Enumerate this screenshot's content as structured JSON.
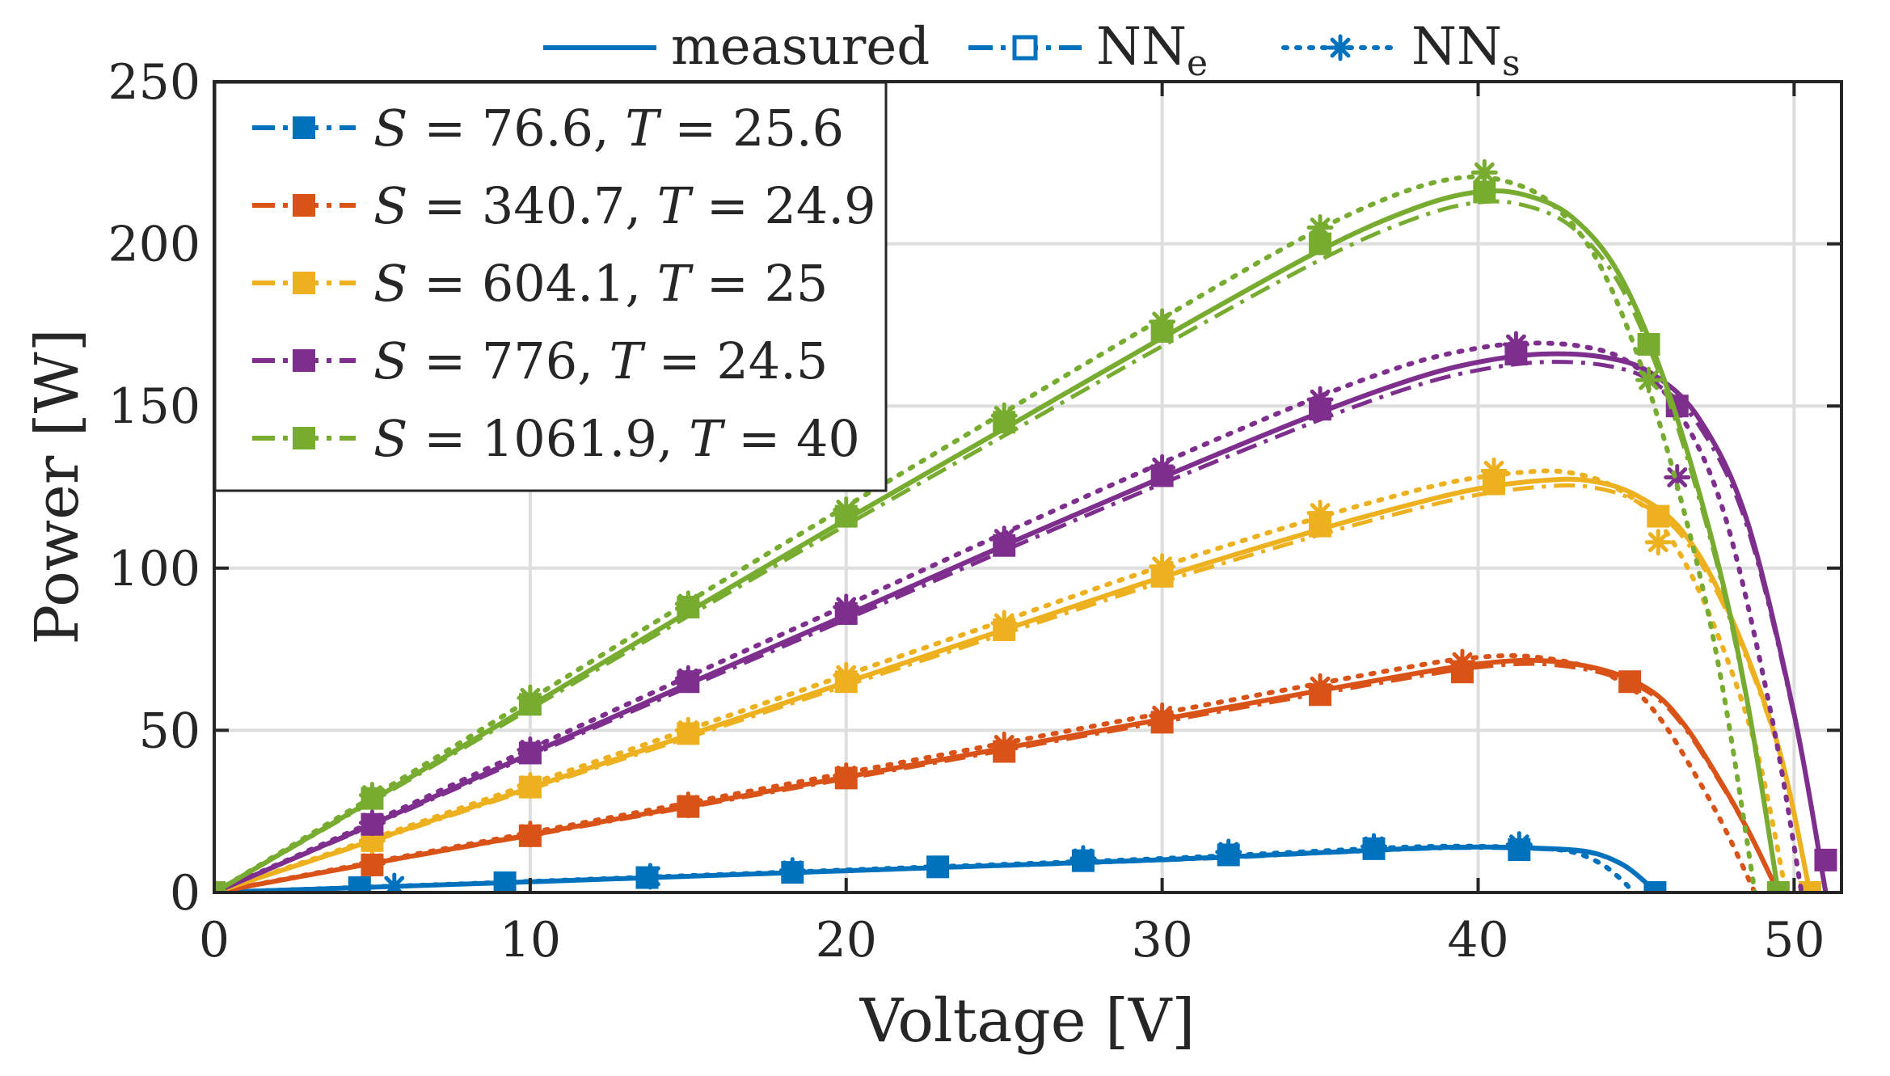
{
  "chart_data": {
    "type": "line",
    "xlabel": "Voltage [V]",
    "ylabel": "Power [W]",
    "xlim": [
      0,
      51.5
    ],
    "ylim": [
      0,
      250
    ],
    "xticks": [
      0,
      10,
      20,
      30,
      40,
      50
    ],
    "yticks": [
      0,
      50,
      100,
      150,
      200,
      250
    ],
    "grid": true,
    "style_legend": {
      "placement": "top-outside",
      "entries": [
        {
          "label": "measured",
          "sub": "",
          "style": "solid",
          "marker": "none"
        },
        {
          "label": "NN",
          "sub": "e",
          "style": "dashdot",
          "marker": "square-open"
        },
        {
          "label": "NN",
          "sub": "s",
          "style": "dotted",
          "marker": "asterisk"
        }
      ]
    },
    "series_legend": {
      "placement": "top-left",
      "entries": [
        "S = 76.6, T = 25.6",
        "S = 340.7, T = 24.9",
        "S = 604.1, T = 25",
        "S = 776, T = 24.5",
        "S = 1061.9, T = 40"
      ]
    },
    "series": [
      {
        "name": "S = 76.6, T = 25.6",
        "color": "#0072BD",
        "measured": [
          [
            0,
            0
          ],
          [
            10,
            3.3
          ],
          [
            20,
            6.7
          ],
          [
            30,
            10.1
          ],
          [
            35,
            12.3
          ],
          [
            38,
            13.6
          ],
          [
            40,
            14
          ],
          [
            42,
            13.6
          ],
          [
            43.5,
            12.5
          ],
          [
            44.5,
            9
          ],
          [
            45.2,
            4
          ],
          [
            45.6,
            0
          ]
        ],
        "nn_e_markers": [
          [
            0,
            0
          ],
          [
            4.6,
            1.5
          ],
          [
            9.2,
            3
          ],
          [
            13.7,
            4.6
          ],
          [
            18.3,
            6.2
          ],
          [
            22.9,
            7.9
          ],
          [
            27.5,
            9.8
          ],
          [
            32.1,
            11.6
          ],
          [
            36.7,
            13.5
          ],
          [
            41.3,
            13.2
          ],
          [
            45.6,
            0
          ]
        ],
        "nn_s_markers": [
          [
            0,
            0
          ],
          [
            5.7,
            2
          ],
          [
            13.8,
            5
          ],
          [
            18.3,
            6.8
          ],
          [
            27.5,
            10.5
          ],
          [
            32.1,
            12.5
          ],
          [
            36.7,
            14.2
          ],
          [
            41.3,
            14.8
          ]
        ]
      },
      {
        "name": "S = 340.7, T = 24.9",
        "color": "#D95319",
        "measured": [
          [
            0,
            0
          ],
          [
            5,
            9
          ],
          [
            10,
            17.8
          ],
          [
            15,
            26.7
          ],
          [
            20,
            35.6
          ],
          [
            25,
            44.5
          ],
          [
            30,
            53.4
          ],
          [
            35,
            62.3
          ],
          [
            38,
            67.5
          ],
          [
            40,
            70.5
          ],
          [
            42,
            71.5
          ],
          [
            44,
            68.5
          ],
          [
            45.5,
            62
          ],
          [
            46.5,
            52
          ],
          [
            47.5,
            37
          ],
          [
            48.5,
            20
          ],
          [
            49.5,
            0
          ]
        ],
        "nn_e_markers": [
          [
            0,
            0
          ],
          [
            5,
            8.5
          ],
          [
            10,
            17.5
          ],
          [
            15,
            26.5
          ],
          [
            20,
            35.3
          ],
          [
            25,
            43.5
          ],
          [
            30,
            52.5
          ],
          [
            35,
            61
          ],
          [
            39.5,
            68
          ],
          [
            44.8,
            65
          ]
        ],
        "nn_s_markers": [
          [
            0,
            0
          ],
          [
            5,
            9
          ],
          [
            10,
            18
          ],
          [
            15,
            27
          ],
          [
            20,
            36
          ],
          [
            25,
            45.5
          ],
          [
            30,
            54.5
          ],
          [
            35,
            63.5
          ],
          [
            39.5,
            71
          ]
        ]
      },
      {
        "name": "S = 604.1, T = 25",
        "color": "#EDB120",
        "measured": [
          [
            0,
            0
          ],
          [
            5,
            16
          ],
          [
            10,
            32.3
          ],
          [
            15,
            48.5
          ],
          [
            20,
            64.8
          ],
          [
            25,
            81
          ],
          [
            30,
            97.2
          ],
          [
            35,
            112
          ],
          [
            38,
            120
          ],
          [
            40,
            124.5
          ],
          [
            42,
            127
          ],
          [
            43.5,
            127
          ],
          [
            45,
            122.5
          ],
          [
            46.5,
            111
          ],
          [
            48,
            85
          ],
          [
            49.5,
            45
          ],
          [
            50.5,
            0
          ]
        ],
        "nn_e_markers": [
          [
            0,
            0
          ],
          [
            5,
            16
          ],
          [
            10,
            32.5
          ],
          [
            15,
            49
          ],
          [
            20,
            65
          ],
          [
            25,
            81
          ],
          [
            30,
            97.5
          ],
          [
            35,
            113
          ],
          [
            40.5,
            126
          ],
          [
            45.7,
            116
          ],
          [
            50.5,
            0
          ]
        ],
        "nn_s_markers": [
          [
            0,
            0
          ],
          [
            5,
            16
          ],
          [
            10,
            33
          ],
          [
            15,
            50
          ],
          [
            20,
            67
          ],
          [
            25,
            83
          ],
          [
            30,
            100.5
          ],
          [
            35,
            117
          ],
          [
            40.5,
            130
          ],
          [
            45.7,
            108
          ]
        ]
      },
      {
        "name": "S = 776, T = 24.5",
        "color": "#7E2F8E",
        "measured": [
          [
            0,
            0
          ],
          [
            5,
            21
          ],
          [
            10,
            42.8
          ],
          [
            15,
            64.3
          ],
          [
            20,
            85.5
          ],
          [
            25,
            107
          ],
          [
            30,
            128
          ],
          [
            35,
            148
          ],
          [
            38,
            158.5
          ],
          [
            40,
            163.5
          ],
          [
            42,
            166
          ],
          [
            44,
            165
          ],
          [
            45.5,
            160
          ],
          [
            47,
            146
          ],
          [
            48.5,
            115
          ],
          [
            50,
            55
          ],
          [
            51,
            0
          ]
        ],
        "nn_e_markers": [
          [
            0,
            0
          ],
          [
            5,
            21
          ],
          [
            10,
            43
          ],
          [
            15,
            65
          ],
          [
            20,
            86
          ],
          [
            25,
            107
          ],
          [
            30,
            128.5
          ],
          [
            35,
            149
          ],
          [
            41.2,
            166
          ],
          [
            46.3,
            150
          ],
          [
            51,
            10
          ]
        ],
        "nn_s_markers": [
          [
            0,
            0
          ],
          [
            5,
            21.5
          ],
          [
            10,
            44
          ],
          [
            15,
            66
          ],
          [
            20,
            88
          ],
          [
            25,
            109
          ],
          [
            30,
            131
          ],
          [
            35,
            152
          ],
          [
            41.2,
            169
          ],
          [
            46.3,
            128
          ]
        ]
      },
      {
        "name": "S = 1061.9, T = 40",
        "color": "#77AC30",
        "measured": [
          [
            0,
            0
          ],
          [
            5,
            28.5
          ],
          [
            10,
            57.5
          ],
          [
            15,
            86.5
          ],
          [
            20,
            115
          ],
          [
            25,
            143
          ],
          [
            30,
            171
          ],
          [
            35,
            198
          ],
          [
            38,
            211
          ],
          [
            40,
            216
          ],
          [
            41.5,
            215
          ],
          [
            43,
            208
          ],
          [
            44.5,
            190
          ],
          [
            46,
            155
          ],
          [
            47.5,
            105
          ],
          [
            48.5,
            60
          ],
          [
            49.5,
            0
          ]
        ],
        "nn_e_markers": [
          [
            0,
            0
          ],
          [
            5,
            29
          ],
          [
            10,
            58
          ],
          [
            15,
            88
          ],
          [
            20,
            116
          ],
          [
            25,
            145
          ],
          [
            30,
            173
          ],
          [
            35,
            200
          ],
          [
            40.2,
            216
          ],
          [
            45.4,
            169
          ],
          [
            49.5,
            0
          ]
        ],
        "nn_s_markers": [
          [
            0,
            0
          ],
          [
            5,
            30
          ],
          [
            10,
            60
          ],
          [
            15,
            89
          ],
          [
            20,
            118
          ],
          [
            25,
            147
          ],
          [
            30,
            176
          ],
          [
            35,
            205
          ],
          [
            40.2,
            222
          ],
          [
            45.4,
            158
          ]
        ]
      }
    ]
  }
}
